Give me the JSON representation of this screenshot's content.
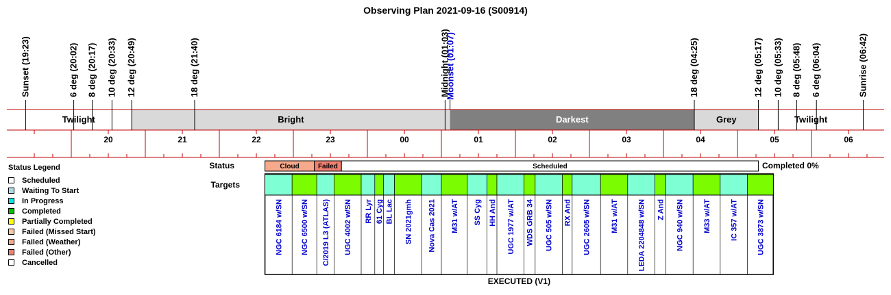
{
  "chart_data": {
    "type": "table",
    "title": "Observing Plan 2021-09-16 (S00914)",
    "time_range": [
      "19:23",
      "06:42"
    ],
    "hour_ticks": [
      "20",
      "21",
      "22",
      "23",
      "00",
      "01",
      "02",
      "03",
      "04",
      "05",
      "06"
    ],
    "events": [
      {
        "label": "Sunset (19:23)",
        "time": "19:23"
      },
      {
        "label": "6 deg (20:02)",
        "time": "20:02"
      },
      {
        "label": "8 deg (20:17)",
        "time": "20:17"
      },
      {
        "label": "10 deg (20:33)",
        "time": "20:33"
      },
      {
        "label": "12 deg (20:49)",
        "time": "20:49"
      },
      {
        "label": "18 deg (21:40)",
        "time": "21:40"
      },
      {
        "label": "Midnight (01:03)",
        "time": "01:03"
      },
      {
        "label": "Moonset (01:07)",
        "time": "01:07",
        "color": "#0000cc"
      },
      {
        "label": "18 deg (04:25)",
        "time": "04:25"
      },
      {
        "label": "12 deg (05:17)",
        "time": "05:17"
      },
      {
        "label": "10 deg (05:33)",
        "time": "05:33"
      },
      {
        "label": "8 deg (05:48)",
        "time": "05:48"
      },
      {
        "label": "6 deg (06:04)",
        "time": "06:04"
      },
      {
        "label": "Sunrise (06:42)",
        "time": "06:42"
      }
    ],
    "sky_bands": [
      {
        "label": "Twilight",
        "start": "19:23",
        "end": "20:49",
        "color": "#ffffff",
        "text_color": "#000000"
      },
      {
        "label": "Bright",
        "start": "20:49",
        "end": "01:07",
        "color": "#d9d9d9",
        "text_color": "#000000"
      },
      {
        "label": "Darkest",
        "start": "01:07",
        "end": "04:25",
        "color": "#808080",
        "text_color": "#ffffff"
      },
      {
        "label": "Grey",
        "start": "04:25",
        "end": "05:17",
        "color": "#d9d9d9",
        "text_color": "#000000"
      },
      {
        "label": "Twilight",
        "start": "05:17",
        "end": "06:42",
        "color": "#ffffff",
        "text_color": "#000000"
      }
    ],
    "status_label": "Status",
    "status_segments": [
      {
        "label": "Cloud",
        "start": "22:37",
        "end": "23:17",
        "color": "#f7a98b"
      },
      {
        "label": "Failed",
        "start": "23:17",
        "end": "23:39",
        "color": "#f08070"
      },
      {
        "label": "Scheduled",
        "start": "23:39",
        "end": "05:17",
        "color": "#ffffff"
      }
    ],
    "completed_label": "Completed 0%",
    "targets_label": "Targets",
    "targets": [
      {
        "name": "NGC 6184 w/SN",
        "start": "22:37",
        "end": "22:59",
        "color": "#7fffd4"
      },
      {
        "name": "NGC 6500 w/SN",
        "start": "22:59",
        "end": "23:19",
        "color": "#7cfc00"
      },
      {
        "name": "C/2019 L3 (ATLAS)",
        "start": "23:19",
        "end": "23:33",
        "color": "#7fffd4"
      },
      {
        "name": "UGC 4002 w/SN",
        "start": "23:33",
        "end": "23:55",
        "color": "#7cfc00"
      },
      {
        "name": "RR Lyr",
        "start": "23:55",
        "end": "00:06",
        "color": "#7fffd4"
      },
      {
        "name": "61 Cyg",
        "start": "00:06",
        "end": "00:13",
        "color": "#7cfc00"
      },
      {
        "name": "BL Lac",
        "start": "00:13",
        "end": "00:22",
        "color": "#7fffd4"
      },
      {
        "name": "SN 2021gmh",
        "start": "00:22",
        "end": "00:44",
        "color": "#7cfc00"
      },
      {
        "name": "Nova Cas 2021",
        "start": "00:44",
        "end": "01:00",
        "color": "#7fffd4"
      },
      {
        "name": "M31 w/AT",
        "start": "01:00",
        "end": "01:21",
        "color": "#7cfc00"
      },
      {
        "name": "SS Cyg",
        "start": "01:21",
        "end": "01:37",
        "color": "#7fffd4"
      },
      {
        "name": "HH And",
        "start": "01:37",
        "end": "01:45",
        "color": "#7cfc00"
      },
      {
        "name": "UGC 1977 w/AT",
        "start": "01:45",
        "end": "02:07",
        "color": "#7fffd4"
      },
      {
        "name": "WDS GRB 34",
        "start": "02:07",
        "end": "02:16",
        "color": "#7cfc00"
      },
      {
        "name": "UGC 505 w/SN",
        "start": "02:16",
        "end": "02:38",
        "color": "#7fffd4"
      },
      {
        "name": "RX And",
        "start": "02:38",
        "end": "02:46",
        "color": "#7cfc00"
      },
      {
        "name": "UGC 2605 w/SN",
        "start": "02:46",
        "end": "03:09",
        "color": "#7fffd4"
      },
      {
        "name": "M31 w/AT",
        "start": "03:09",
        "end": "03:31",
        "color": "#7cfc00"
      },
      {
        "name": "LEDA 2204848 w/SN",
        "start": "03:31",
        "end": "03:53",
        "color": "#7fffd4"
      },
      {
        "name": "Z And",
        "start": "03:53",
        "end": "04:02",
        "color": "#7cfc00"
      },
      {
        "name": "NGC 940 w/SN",
        "start": "04:02",
        "end": "04:24",
        "color": "#7fffd4"
      },
      {
        "name": "M33 w/AT",
        "start": "04:24",
        "end": "04:46",
        "color": "#7cfc00"
      },
      {
        "name": "IC 357 w/AT",
        "start": "04:46",
        "end": "05:08",
        "color": "#7fffd4"
      },
      {
        "name": "UGC 3873 w/SN",
        "start": "05:08",
        "end": "05:29",
        "color": "#7cfc00"
      }
    ],
    "footer_label": "EXECUTED (V1)"
  },
  "legend": {
    "title": "Status Legend",
    "items": [
      {
        "label": "Scheduled",
        "color": "#ffffff"
      },
      {
        "label": "Waiting To Start",
        "color": "#add8e6"
      },
      {
        "label": "In Progress",
        "color": "#00e5e5"
      },
      {
        "label": "Completed",
        "color": "#00c000"
      },
      {
        "label": "Partially Completed",
        "color": "#ffff00"
      },
      {
        "label": "Failed (Missed Start)",
        "color": "#f7c8a0"
      },
      {
        "label": "Failed (Weather)",
        "color": "#f7a98b"
      },
      {
        "label": "Failed (Other)",
        "color": "#f08070"
      },
      {
        "label": "Cancelled",
        "color": "#ffffff"
      }
    ]
  }
}
